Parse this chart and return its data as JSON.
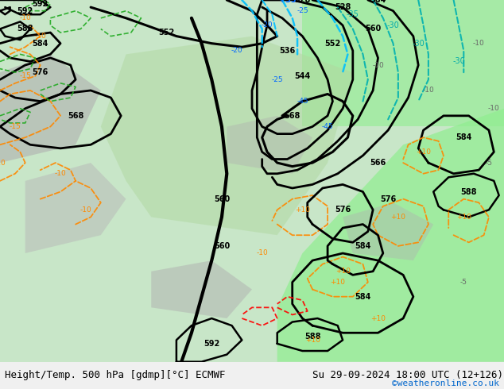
{
  "title_left": "Height/Temp. 500 hPa [gdmp][°C] ECMWF",
  "title_right": "Su 29-09-2024 18:00 UTC (12+126)",
  "credit": "©weatheronline.co.uk",
  "background_color": "#f0f0f0",
  "map_bg": "#e8f4e8",
  "title_fontsize": 9,
  "credit_fontsize": 8,
  "credit_color": "#0066cc"
}
